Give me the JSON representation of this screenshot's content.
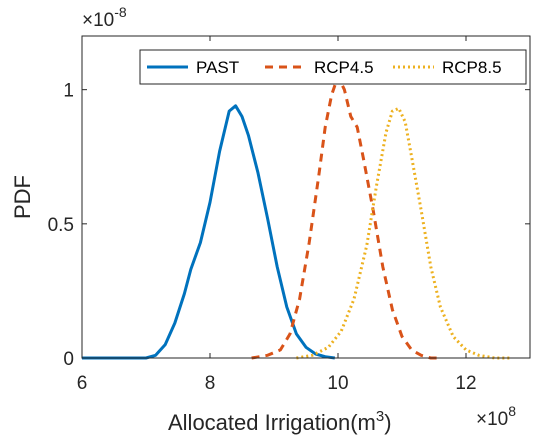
{
  "chart_data": {
    "type": "line",
    "xlabel": "Allocated Irrigation(m",
    "xlabel_superscript": "3",
    "xlabel_suffix": ")",
    "ylabel": "PDF",
    "x_exponent_base": "×10",
    "x_exponent_power": "8",
    "y_exponent_base": "×10",
    "y_exponent_power": "-8",
    "xlim": [
      6,
      13
    ],
    "ylim": [
      0,
      1.2
    ],
    "x_ticks": [
      6,
      8,
      10,
      12
    ],
    "x_tick_labels": [
      "6",
      "8",
      "10",
      "12"
    ],
    "y_ticks": [
      0,
      0.5,
      1
    ],
    "y_tick_labels": [
      "0",
      "0.5",
      "1"
    ],
    "legend_position": "top-right",
    "grid": false,
    "series": [
      {
        "name": "PAST",
        "color": "#0072BD",
        "style": "solid",
        "x": [
          6.0,
          7.0,
          7.15,
          7.3,
          7.45,
          7.6,
          7.7,
          7.85,
          8.0,
          8.15,
          8.3,
          8.4,
          8.5,
          8.6,
          8.75,
          8.9,
          9.05,
          9.2,
          9.35,
          9.5,
          9.65,
          9.8,
          9.95
        ],
        "y": [
          0.0,
          0.0,
          0.01,
          0.05,
          0.13,
          0.24,
          0.33,
          0.43,
          0.58,
          0.77,
          0.92,
          0.94,
          0.9,
          0.83,
          0.69,
          0.52,
          0.34,
          0.19,
          0.09,
          0.04,
          0.015,
          0.005,
          0.0
        ]
      },
      {
        "name": "RCP4.5",
        "color": "#D95319",
        "style": "dashed",
        "x": [
          8.65,
          8.9,
          9.1,
          9.25,
          9.4,
          9.55,
          9.7,
          9.8,
          9.9,
          10.0,
          10.1,
          10.2,
          10.3,
          10.4,
          10.55,
          10.7,
          10.85,
          11.0,
          11.15,
          11.3,
          11.45,
          11.6
        ],
        "y": [
          0.0,
          0.01,
          0.03,
          0.09,
          0.22,
          0.43,
          0.68,
          0.86,
          0.98,
          1.05,
          1.0,
          0.9,
          0.86,
          0.74,
          0.55,
          0.34,
          0.18,
          0.08,
          0.03,
          0.01,
          0.0,
          0.0
        ]
      },
      {
        "name": "RCP8.5",
        "color": "#EDB120",
        "style": "dotted",
        "x": [
          9.35,
          9.6,
          9.85,
          10.05,
          10.25,
          10.45,
          10.6,
          10.75,
          10.85,
          10.95,
          11.05,
          11.15,
          11.3,
          11.45,
          11.6,
          11.8,
          12.0,
          12.2,
          12.45,
          12.7
        ],
        "y": [
          0.0,
          0.01,
          0.04,
          0.1,
          0.22,
          0.42,
          0.64,
          0.84,
          0.92,
          0.93,
          0.88,
          0.75,
          0.55,
          0.34,
          0.19,
          0.08,
          0.03,
          0.01,
          0.0,
          0.0
        ]
      }
    ]
  }
}
